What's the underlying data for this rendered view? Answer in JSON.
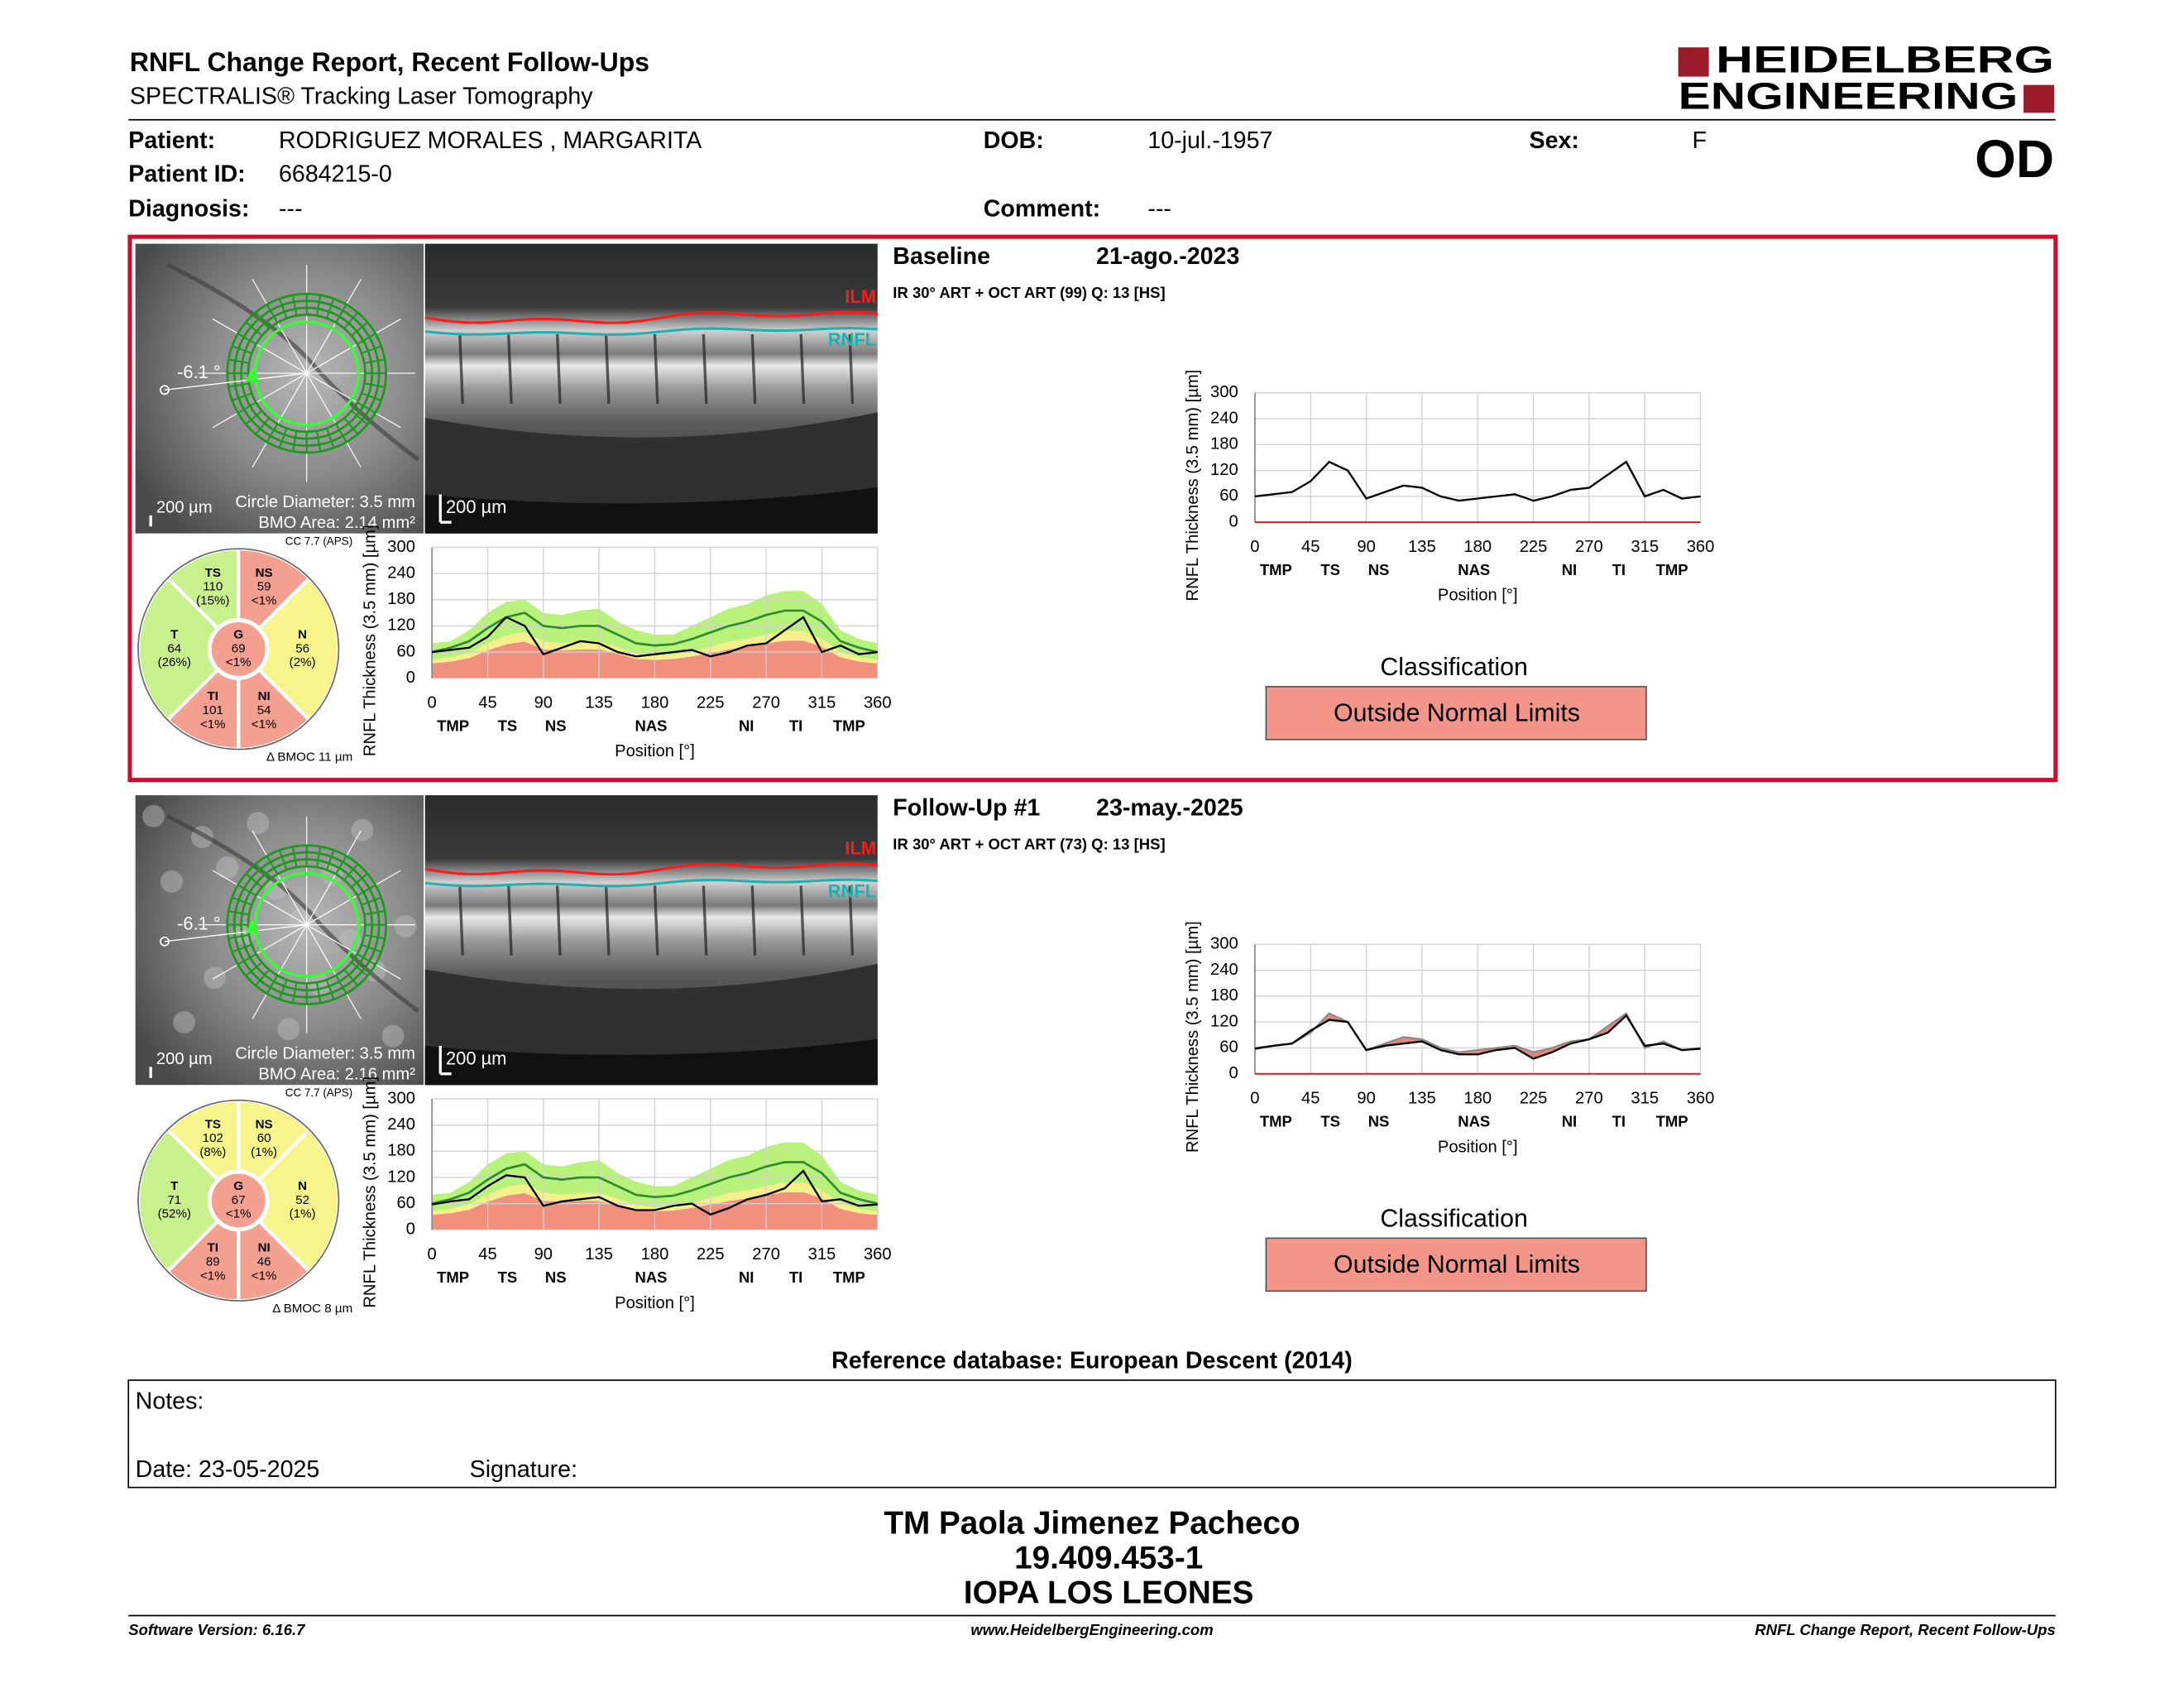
{
  "header": {
    "title": "RNFL Change Report, Recent Follow-Ups",
    "subtitle": "SPECTRALIS® Tracking Laser Tomography",
    "logo_top": "HEIDELBERG",
    "logo_bottom": "ENGINEERING"
  },
  "patient": {
    "name_label": "Patient:",
    "name": "RODRIGUEZ MORALES , MARGARITA",
    "id_label": "Patient ID:",
    "id": "6684215-0",
    "diagnosis_label": "Diagnosis:",
    "diagnosis": "---",
    "dob_label": "DOB:",
    "dob": "10-jul.-1957",
    "comment_label": "Comment:",
    "comment": "---",
    "sex_label": "Sex:",
    "sex": "F",
    "eye": "OD"
  },
  "profile_axes": {
    "ylabel": "RNFL Thickness (3.5 mm) [µm]",
    "xlabel": "Position [°]",
    "ylim": [
      0,
      300
    ],
    "yticks": [
      0,
      60,
      120,
      180,
      240,
      300
    ],
    "xlim": [
      0,
      360
    ],
    "xticks": [
      0,
      45,
      90,
      135,
      180,
      225,
      270,
      315,
      360
    ],
    "sector_labels": [
      "TMP",
      "TS",
      "NS",
      "NAS",
      "NI",
      "TI",
      "TMP"
    ],
    "positions": [
      0,
      15,
      30,
      45,
      60,
      75,
      90,
      105,
      120,
      135,
      150,
      165,
      180,
      195,
      210,
      225,
      240,
      255,
      270,
      285,
      300,
      315,
      330,
      345,
      360
    ]
  },
  "reference": {
    "p95": [
      80,
      85,
      110,
      150,
      175,
      180,
      150,
      145,
      155,
      160,
      130,
      110,
      100,
      100,
      120,
      140,
      160,
      170,
      190,
      200,
      200,
      170,
      110,
      90,
      80
    ],
    "median": [
      60,
      70,
      85,
      115,
      140,
      150,
      120,
      115,
      120,
      120,
      100,
      80,
      75,
      78,
      90,
      105,
      120,
      130,
      145,
      155,
      155,
      130,
      85,
      70,
      60
    ],
    "p5": [
      42,
      48,
      58,
      80,
      98,
      105,
      84,
      80,
      84,
      84,
      70,
      56,
      52,
      54,
      62,
      72,
      84,
      90,
      100,
      108,
      108,
      90,
      60,
      48,
      42
    ],
    "p1": [
      34,
      38,
      46,
      64,
      78,
      84,
      66,
      64,
      66,
      66,
      56,
      44,
      42,
      44,
      50,
      58,
      66,
      72,
      80,
      86,
      86,
      72,
      48,
      38,
      34
    ],
    "colors": {
      "p95": "#b8f27a",
      "p5": "#f5f08a",
      "p1": "#f2907e",
      "median": "#2d8c2d"
    }
  },
  "change_colors": {
    "thinner": "#e8857a",
    "thicker": "#90e090",
    "baseline_curve": "#8a8a8a"
  },
  "exams": [
    {
      "label": "Baseline",
      "date": "21-ago.-2023",
      "scan": "IR 30° ART + OCT ART (99) Q: 13 [HS]",
      "fundus": {
        "angle": "-6.1 °",
        "scale": "200 µm",
        "circle": "Circle Diameter: 3.5 mm",
        "bmo": "BMO Area: 2.14 mm²"
      },
      "oct": {
        "ilm": "ILM",
        "rnfl": "RNFL",
        "scale": "200 µm"
      },
      "sectors": {
        "cc": "CC 7.7 (APS)",
        "bmoc": "Δ BMOC 11 µm",
        "items": [
          {
            "name": "TS",
            "value": 110,
            "pct": "(15%)",
            "color": "#c8f08c"
          },
          {
            "name": "NS",
            "value": 59,
            "pct": "<1%",
            "color": "#f4a090"
          },
          {
            "name": "N",
            "value": 56,
            "pct": "(2%)",
            "color": "#f8f48c"
          },
          {
            "name": "NI",
            "value": 54,
            "pct": "<1%",
            "color": "#f4a090"
          },
          {
            "name": "TI",
            "value": 101,
            "pct": "<1%",
            "color": "#f4a090"
          },
          {
            "name": "T",
            "value": 64,
            "pct": "(26%)",
            "color": "#c8f08c"
          },
          {
            "name": "G",
            "value": 69,
            "pct": "<1%",
            "color": "#f4a090"
          }
        ]
      },
      "thickness": [
        60,
        65,
        70,
        95,
        140,
        120,
        55,
        70,
        85,
        80,
        60,
        50,
        55,
        60,
        65,
        50,
        60,
        75,
        80,
        110,
        140,
        60,
        75,
        55,
        60
      ],
      "classification_label": "Classification",
      "classification": "Outside Normal Limits",
      "classification_color": "#f4958a"
    },
    {
      "label": "Follow-Up #1",
      "date": "23-may.-2025",
      "scan": "IR 30° ART + OCT ART (73) Q: 13 [HS]",
      "fundus": {
        "angle": "-6.1 °",
        "scale": "200 µm",
        "circle": "Circle Diameter: 3.5 mm",
        "bmo": "BMO Area: 2.16 mm²"
      },
      "oct": {
        "ilm": "ILM",
        "rnfl": "RNFL",
        "scale": "200 µm"
      },
      "sectors": {
        "cc": "CC 7.7 (APS)",
        "bmoc": "Δ BMOC 8 µm",
        "items": [
          {
            "name": "TS",
            "value": 102,
            "pct": "(8%)",
            "color": "#f8f48c"
          },
          {
            "name": "NS",
            "value": 60,
            "pct": "(1%)",
            "color": "#f8f48c"
          },
          {
            "name": "N",
            "value": 52,
            "pct": "(1%)",
            "color": "#f8f48c"
          },
          {
            "name": "NI",
            "value": 46,
            "pct": "<1%",
            "color": "#f4a090"
          },
          {
            "name": "TI",
            "value": 89,
            "pct": "<1%",
            "color": "#f4a090"
          },
          {
            "name": "T",
            "value": 71,
            "pct": "(52%)",
            "color": "#c8f08c"
          },
          {
            "name": "G",
            "value": 67,
            "pct": "<1%",
            "color": "#f4a090"
          }
        ]
      },
      "thickness": [
        58,
        65,
        70,
        100,
        125,
        120,
        55,
        65,
        70,
        75,
        55,
        45,
        45,
        55,
        60,
        35,
        50,
        70,
        80,
        95,
        135,
        65,
        70,
        55,
        58
      ],
      "classification_label": "Classification",
      "classification": "Outside Normal Limits",
      "classification_color": "#f4958a"
    }
  ],
  "reference_db": "Reference database: European Descent (2014)",
  "notes": {
    "label": "Notes:",
    "date": "Date: 23-05-2025",
    "signature": "Signature:"
  },
  "signature": [
    "TM Paola Jimenez Pacheco",
    "19.409.453-1",
    "IOPA LOS LEONES"
  ],
  "footer": {
    "left": "Software Version: 6.16.7",
    "center": "www.HeidelbergEngineering.com",
    "right": "RNFL Change Report, Recent Follow-Ups"
  }
}
